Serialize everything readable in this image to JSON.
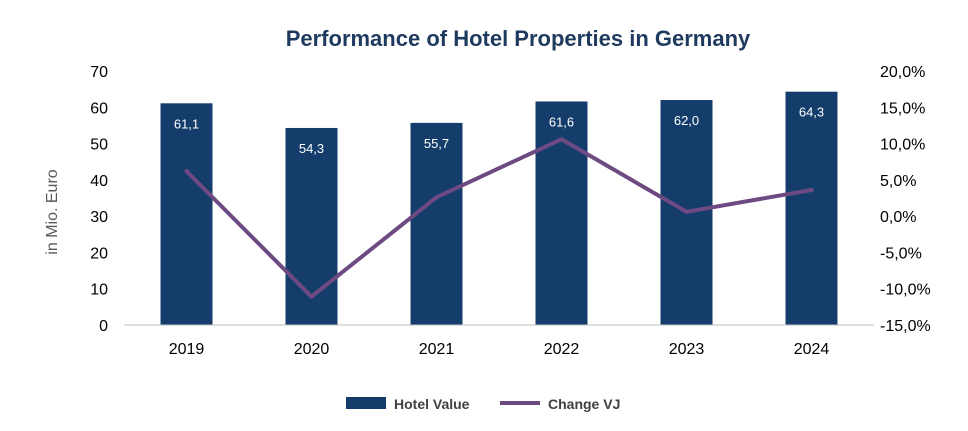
{
  "chart_data": {
    "type": "bar",
    "title": "Performance of Hotel Properties in Germany",
    "categories": [
      "2019",
      "2020",
      "2021",
      "2022",
      "2023",
      "2024"
    ],
    "ylabel": "in Mio. Euro",
    "ylim": [
      0,
      70
    ],
    "yticks": [
      "0",
      "10",
      "20",
      "30",
      "40",
      "50",
      "60",
      "70"
    ],
    "y2lim": [
      -15,
      20
    ],
    "y2ticks": [
      "-15,0%",
      "-10,0%",
      "-5,0%",
      "0,0%",
      "5,0%",
      "10,0%",
      "15,0%",
      "20,0%"
    ],
    "series": [
      {
        "name": "Hotel Value",
        "type": "bar",
        "axis": "left",
        "values": [
          61.1,
          54.3,
          55.7,
          61.6,
          62.0,
          64.3
        ],
        "labels": [
          "61,1",
          "54,3",
          "55,7",
          "61,6",
          "62,0",
          "64,3"
        ],
        "color": "#143d6b"
      },
      {
        "name": "Change VJ",
        "type": "line",
        "axis": "right",
        "values": [
          6.2,
          -11.1,
          2.6,
          10.6,
          0.6,
          3.6
        ],
        "color": "#6e4a83"
      }
    ],
    "legend": "bottom-center",
    "grid": false
  }
}
